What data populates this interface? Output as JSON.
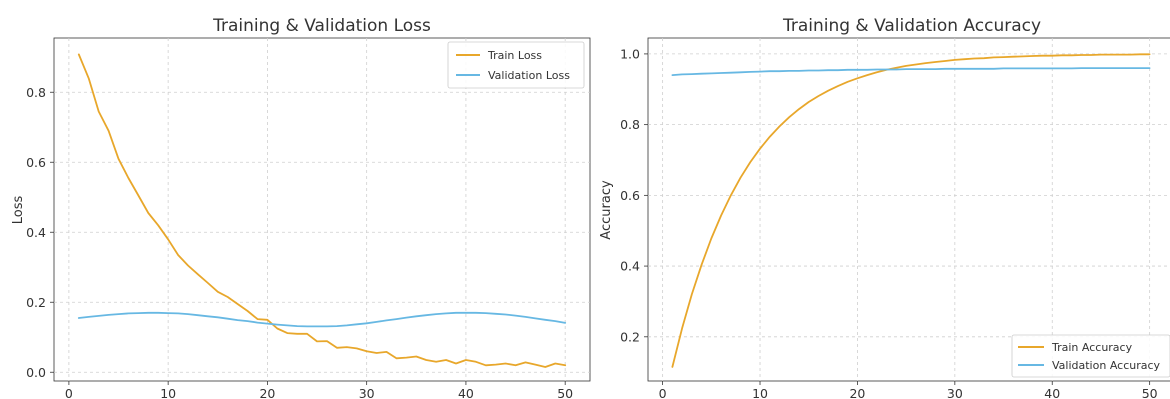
{
  "chart_data": [
    {
      "type": "line",
      "title": "Training & Validation Loss",
      "xlabel": "",
      "ylabel": "Loss",
      "xlim": [
        -1.5,
        52.5
      ],
      "ylim": [
        -0.025,
        0.955
      ],
      "xticks": [
        0,
        10,
        20,
        30,
        40,
        50
      ],
      "yticks": [
        0.0,
        0.2,
        0.4,
        0.6,
        0.8
      ],
      "ytick_labels": [
        "0.0",
        "0.2",
        "0.4",
        "0.6",
        "0.8"
      ],
      "grid": true,
      "legend_position": "top-right",
      "x": [
        1,
        2,
        3,
        4,
        5,
        6,
        7,
        8,
        9,
        10,
        11,
        12,
        13,
        14,
        15,
        16,
        17,
        18,
        19,
        20,
        21,
        22,
        23,
        24,
        25,
        26,
        27,
        28,
        29,
        30,
        31,
        32,
        33,
        34,
        35,
        36,
        37,
        38,
        39,
        40,
        41,
        42,
        43,
        44,
        45,
        46,
        47,
        48,
        49,
        50
      ],
      "series": [
        {
          "name": "Train Loss",
          "color": "#E8A72B",
          "values": [
            0.908,
            0.84,
            0.745,
            0.69,
            0.61,
            0.555,
            0.505,
            0.455,
            0.42,
            0.38,
            0.335,
            0.305,
            0.28,
            0.255,
            0.23,
            0.215,
            0.195,
            0.175,
            0.152,
            0.15,
            0.125,
            0.112,
            0.11,
            0.11,
            0.088,
            0.089,
            0.07,
            0.072,
            0.068,
            0.06,
            0.055,
            0.058,
            0.04,
            0.042,
            0.045,
            0.035,
            0.03,
            0.035,
            0.025,
            0.035,
            0.03,
            0.02,
            0.022,
            0.025,
            0.02,
            0.028,
            0.022,
            0.015,
            0.025,
            0.02
          ]
        },
        {
          "name": "Validation Loss",
          "color": "#67B8E3",
          "values": [
            0.155,
            0.158,
            0.161,
            0.164,
            0.166,
            0.168,
            0.169,
            0.17,
            0.17,
            0.169,
            0.168,
            0.166,
            0.163,
            0.16,
            0.157,
            0.153,
            0.149,
            0.146,
            0.142,
            0.139,
            0.136,
            0.134,
            0.132,
            0.131,
            0.131,
            0.131,
            0.132,
            0.134,
            0.137,
            0.14,
            0.144,
            0.148,
            0.152,
            0.156,
            0.16,
            0.163,
            0.166,
            0.168,
            0.17,
            0.17,
            0.17,
            0.169,
            0.167,
            0.165,
            0.162,
            0.158,
            0.154,
            0.15,
            0.146,
            0.141
          ]
        }
      ]
    },
    {
      "type": "line",
      "title": "Training & Validation Accuracy",
      "xlabel": "",
      "ylabel": "Accuracy",
      "xlim": [
        -1.5,
        52.5
      ],
      "ylim": [
        0.075,
        1.045
      ],
      "xticks": [
        0,
        10,
        20,
        30,
        40,
        50
      ],
      "yticks": [
        0.2,
        0.4,
        0.6,
        0.8,
        1.0
      ],
      "ytick_labels": [
        "0.2",
        "0.4",
        "0.6",
        "0.8",
        "1.0"
      ],
      "grid": true,
      "legend_position": "bottom-right",
      "x": [
        1,
        2,
        3,
        4,
        5,
        6,
        7,
        8,
        9,
        10,
        11,
        12,
        13,
        14,
        15,
        16,
        17,
        18,
        19,
        20,
        21,
        22,
        23,
        24,
        25,
        26,
        27,
        28,
        29,
        30,
        31,
        32,
        33,
        34,
        35,
        36,
        37,
        38,
        39,
        40,
        41,
        42,
        43,
        44,
        45,
        46,
        47,
        48,
        49,
        50
      ],
      "series": [
        {
          "name": "Train Accuracy",
          "color": "#E8A72B",
          "values": [
            0.115,
            0.224,
            0.32,
            0.404,
            0.478,
            0.543,
            0.6,
            0.65,
            0.694,
            0.732,
            0.766,
            0.795,
            0.821,
            0.844,
            0.864,
            0.881,
            0.896,
            0.909,
            0.921,
            0.931,
            0.94,
            0.948,
            0.955,
            0.961,
            0.966,
            0.97,
            0.974,
            0.977,
            0.98,
            0.983,
            0.985,
            0.987,
            0.988,
            0.99,
            0.991,
            0.992,
            0.993,
            0.994,
            0.995,
            0.995,
            0.996,
            0.996,
            0.997,
            0.997,
            0.998,
            0.998,
            0.998,
            0.998,
            0.999,
            0.999
          ]
        },
        {
          "name": "Validation Accuracy",
          "color": "#67B8E3",
          "values": [
            0.94,
            0.942,
            0.943,
            0.944,
            0.945,
            0.946,
            0.947,
            0.948,
            0.949,
            0.95,
            0.951,
            0.951,
            0.952,
            0.952,
            0.953,
            0.953,
            0.954,
            0.954,
            0.955,
            0.955,
            0.955,
            0.956,
            0.956,
            0.956,
            0.957,
            0.957,
            0.957,
            0.957,
            0.958,
            0.958,
            0.958,
            0.958,
            0.958,
            0.958,
            0.959,
            0.959,
            0.959,
            0.959,
            0.959,
            0.959,
            0.959,
            0.959,
            0.96,
            0.96,
            0.96,
            0.96,
            0.96,
            0.96,
            0.96,
            0.96
          ]
        }
      ]
    }
  ]
}
